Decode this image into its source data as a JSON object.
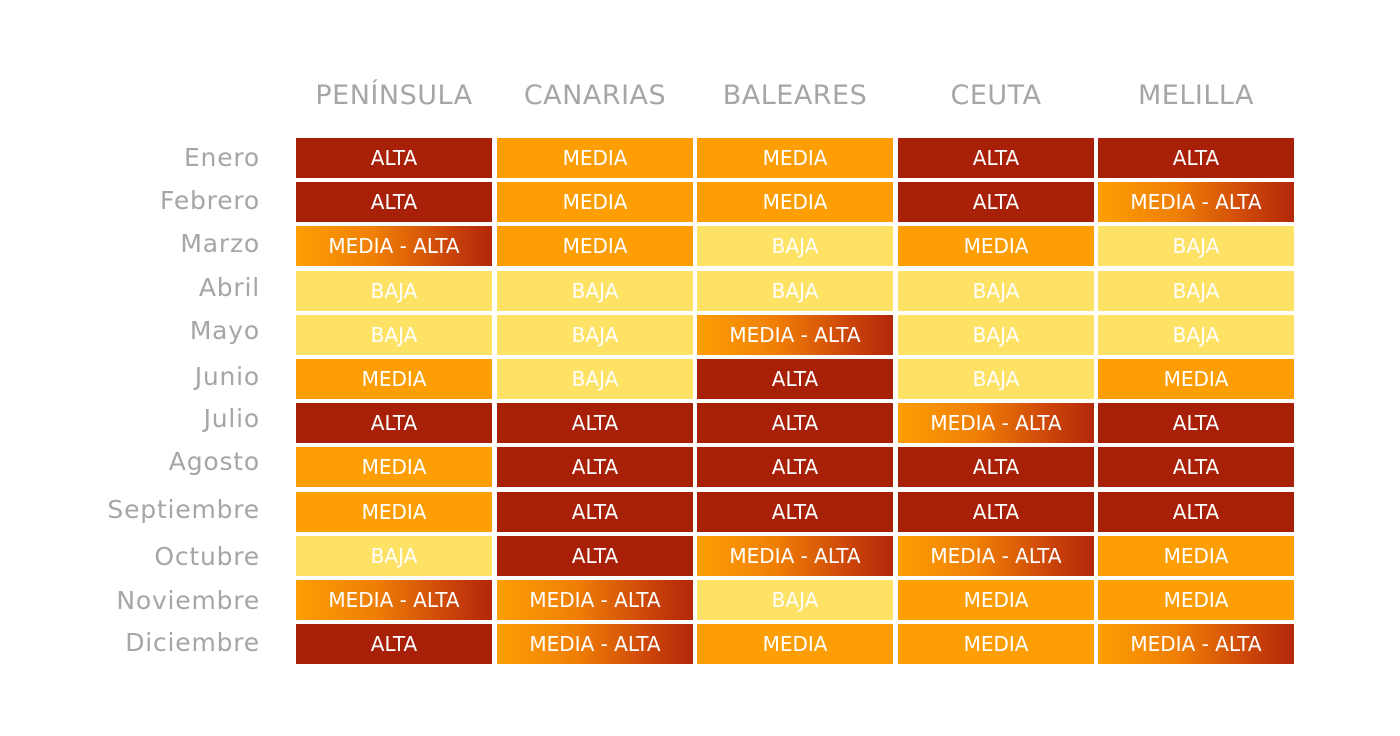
{
  "chart_data": {
    "type": "heatmap",
    "columns": [
      "PENÍNSULA",
      "CANARIAS",
      "BALEARES",
      "CEUTA",
      "MELILLA"
    ],
    "rows": [
      "Enero",
      "Febrero",
      "Marzo",
      "Abril",
      "Mayo",
      "Junio",
      "Julio",
      "Agosto",
      "Septiembre",
      "Octubre",
      "Noviembre",
      "Diciembre"
    ],
    "values": [
      [
        "ALTA",
        "MEDIA",
        "MEDIA",
        "ALTA",
        "ALTA"
      ],
      [
        "ALTA",
        "MEDIA",
        "MEDIA",
        "ALTA",
        "MEDIA - ALTA"
      ],
      [
        "MEDIA - ALTA",
        "MEDIA",
        "BAJA",
        "MEDIA",
        "BAJA"
      ],
      [
        "BAJA",
        "BAJA",
        "BAJA",
        "BAJA",
        "BAJA"
      ],
      [
        "BAJA",
        "BAJA",
        "MEDIA - ALTA",
        "BAJA",
        "BAJA"
      ],
      [
        "MEDIA",
        "BAJA",
        "ALTA",
        "BAJA",
        "MEDIA"
      ],
      [
        "ALTA",
        "ALTA",
        "ALTA",
        "MEDIA - ALTA",
        "ALTA"
      ],
      [
        "MEDIA",
        "ALTA",
        "ALTA",
        "ALTA",
        "ALTA"
      ],
      [
        "MEDIA",
        "ALTA",
        "ALTA",
        "ALTA",
        "ALTA"
      ],
      [
        "BAJA",
        "ALTA",
        "MEDIA - ALTA",
        "MEDIA - ALTA",
        "MEDIA"
      ],
      [
        "MEDIA - ALTA",
        "MEDIA - ALTA",
        "BAJA",
        "MEDIA",
        "MEDIA"
      ],
      [
        "ALTA",
        "MEDIA - ALTA",
        "MEDIA",
        "MEDIA",
        "MEDIA - ALTA"
      ]
    ],
    "level_colors": {
      "ALTA": "#a82008",
      "MEDIA - ALTA": "#d95a08",
      "MEDIA": "#fd9f04",
      "BAJA": "#fde266"
    },
    "header_color": "#a6a6a6",
    "label_color": "#a6a6a6",
    "cell_text_color": "#ffffff"
  }
}
